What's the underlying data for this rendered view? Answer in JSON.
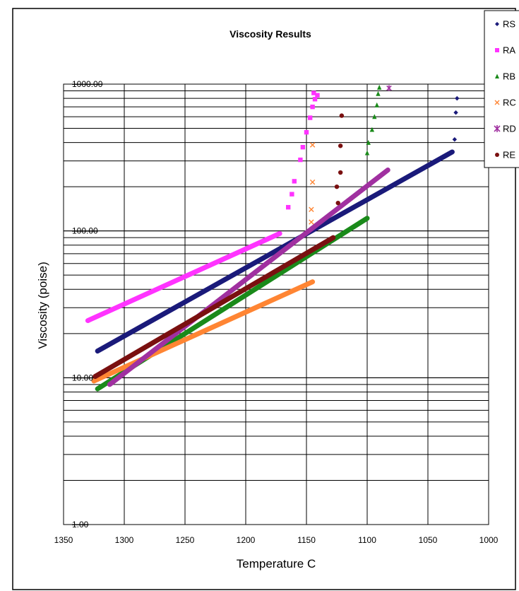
{
  "chart_data": {
    "type": "scatter",
    "title": "Viscosity Results",
    "xlabel": "Temperature C",
    "ylabel": "Viscosity (poise)",
    "x_reversed": true,
    "xlim": [
      1350,
      1000
    ],
    "ylim": [
      1,
      1000
    ],
    "y_scale": "log",
    "grid": true,
    "x_ticks": [
      "1350",
      "1300",
      "1250",
      "1200",
      "1150",
      "1100",
      "1050",
      "1000"
    ],
    "y_ticks": [
      "1000.00",
      "100.00",
      "10.00",
      "1.00"
    ],
    "legend_position": "top-right",
    "series": [
      {
        "name": "RS",
        "color": "#1a1a7a",
        "marker": "diamond",
        "line": [
          [
            1322,
            15.2
          ],
          [
            1030,
            345
          ]
        ],
        "points": [
          [
            1028,
            420
          ],
          [
            1027,
            640
          ],
          [
            1026,
            800
          ]
        ]
      },
      {
        "name": "RA",
        "color": "#ff33ff",
        "marker": "square",
        "line": [
          [
            1330,
            24.5
          ],
          [
            1172,
            96
          ]
        ],
        "points": [
          [
            1165,
            145
          ],
          [
            1162,
            178
          ],
          [
            1160,
            218
          ],
          [
            1155,
            305
          ],
          [
            1153,
            372
          ],
          [
            1150,
            470
          ],
          [
            1147,
            590
          ],
          [
            1145,
            700
          ],
          [
            1143,
            790
          ],
          [
            1144,
            870
          ],
          [
            1141,
            840
          ]
        ]
      },
      {
        "name": "RB",
        "color": "#1a8a1a",
        "marker": "triangle",
        "line": [
          [
            1322,
            8.4
          ],
          [
            1100,
            122
          ]
        ],
        "points": [
          [
            1100,
            340
          ],
          [
            1099,
            400
          ],
          [
            1096,
            490
          ],
          [
            1094,
            600
          ],
          [
            1092,
            720
          ],
          [
            1091,
            860
          ],
          [
            1090,
            950
          ]
        ]
      },
      {
        "name": "RC",
        "color": "#ff8533",
        "marker": "x",
        "line": [
          [
            1325,
            9.5
          ],
          [
            1145,
            45
          ]
        ],
        "points": [
          [
            1146,
            115
          ],
          [
            1146,
            140
          ],
          [
            1145,
            215
          ],
          [
            1145,
            385
          ]
        ]
      },
      {
        "name": "RD",
        "color": "#a030a0",
        "marker": "asterisk",
        "line": [
          [
            1312,
            9.0
          ],
          [
            1083,
            260
          ]
        ],
        "points": [
          [
            1082,
            940
          ]
        ]
      },
      {
        "name": "RE",
        "color": "#7a1010",
        "marker": "circle",
        "line": [
          [
            1324,
            10.2
          ],
          [
            1128,
            90
          ]
        ],
        "points": [
          [
            1124,
            155
          ],
          [
            1125,
            200
          ],
          [
            1122,
            250
          ],
          [
            1122,
            380
          ],
          [
            1121,
            610
          ]
        ]
      }
    ]
  }
}
